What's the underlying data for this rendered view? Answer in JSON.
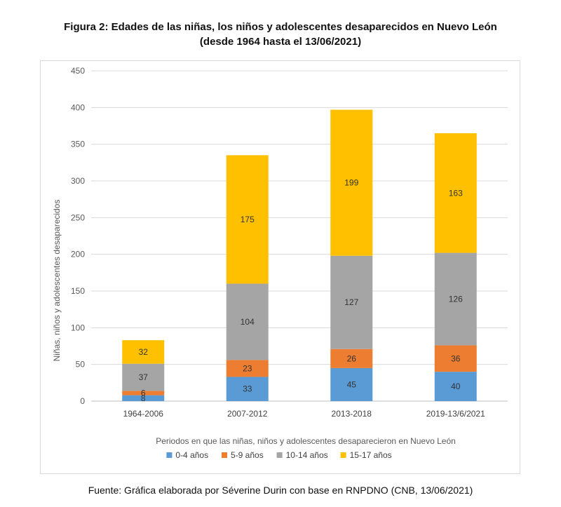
{
  "title_line1": "Figura 2: Edades de las niñas, los niños y adolescentes desaparecidos en Nuevo León",
  "title_line2": "(desde 1964 hasta el 13/06/2021)",
  "source": "Fuente: Gráfica elaborada por Séverine Durin con base en RNPDNO (CNB, 13/06/2021)",
  "chart_data": {
    "type": "bar",
    "stacked": true,
    "categories": [
      "1964-2006",
      "2007-2012",
      "2013-2018",
      "2019-13/6/2021"
    ],
    "series": [
      {
        "name": "0-4 años",
        "values": [
          8,
          33,
          45,
          40
        ],
        "color": "#5B9BD5"
      },
      {
        "name": "5-9 años",
        "values": [
          6,
          23,
          26,
          36
        ],
        "color": "#ED7D31"
      },
      {
        "name": "10-14 años",
        "values": [
          37,
          104,
          127,
          126
        ],
        "color": "#A5A5A5"
      },
      {
        "name": "15-17 años",
        "values": [
          32,
          175,
          199,
          163
        ],
        "color": "#FFC000"
      }
    ],
    "xlabel": "Periodos en que las niñas, niños y adolescentes desaparecieron en Nuevo León",
    "ylabel": "Niñas, niños y adolescentes desaparecidos",
    "ylim": [
      0,
      450
    ],
    "yticks": [
      0,
      50,
      100,
      150,
      200,
      250,
      300,
      350,
      400,
      450
    ],
    "grid": true,
    "legend": "bottom"
  }
}
